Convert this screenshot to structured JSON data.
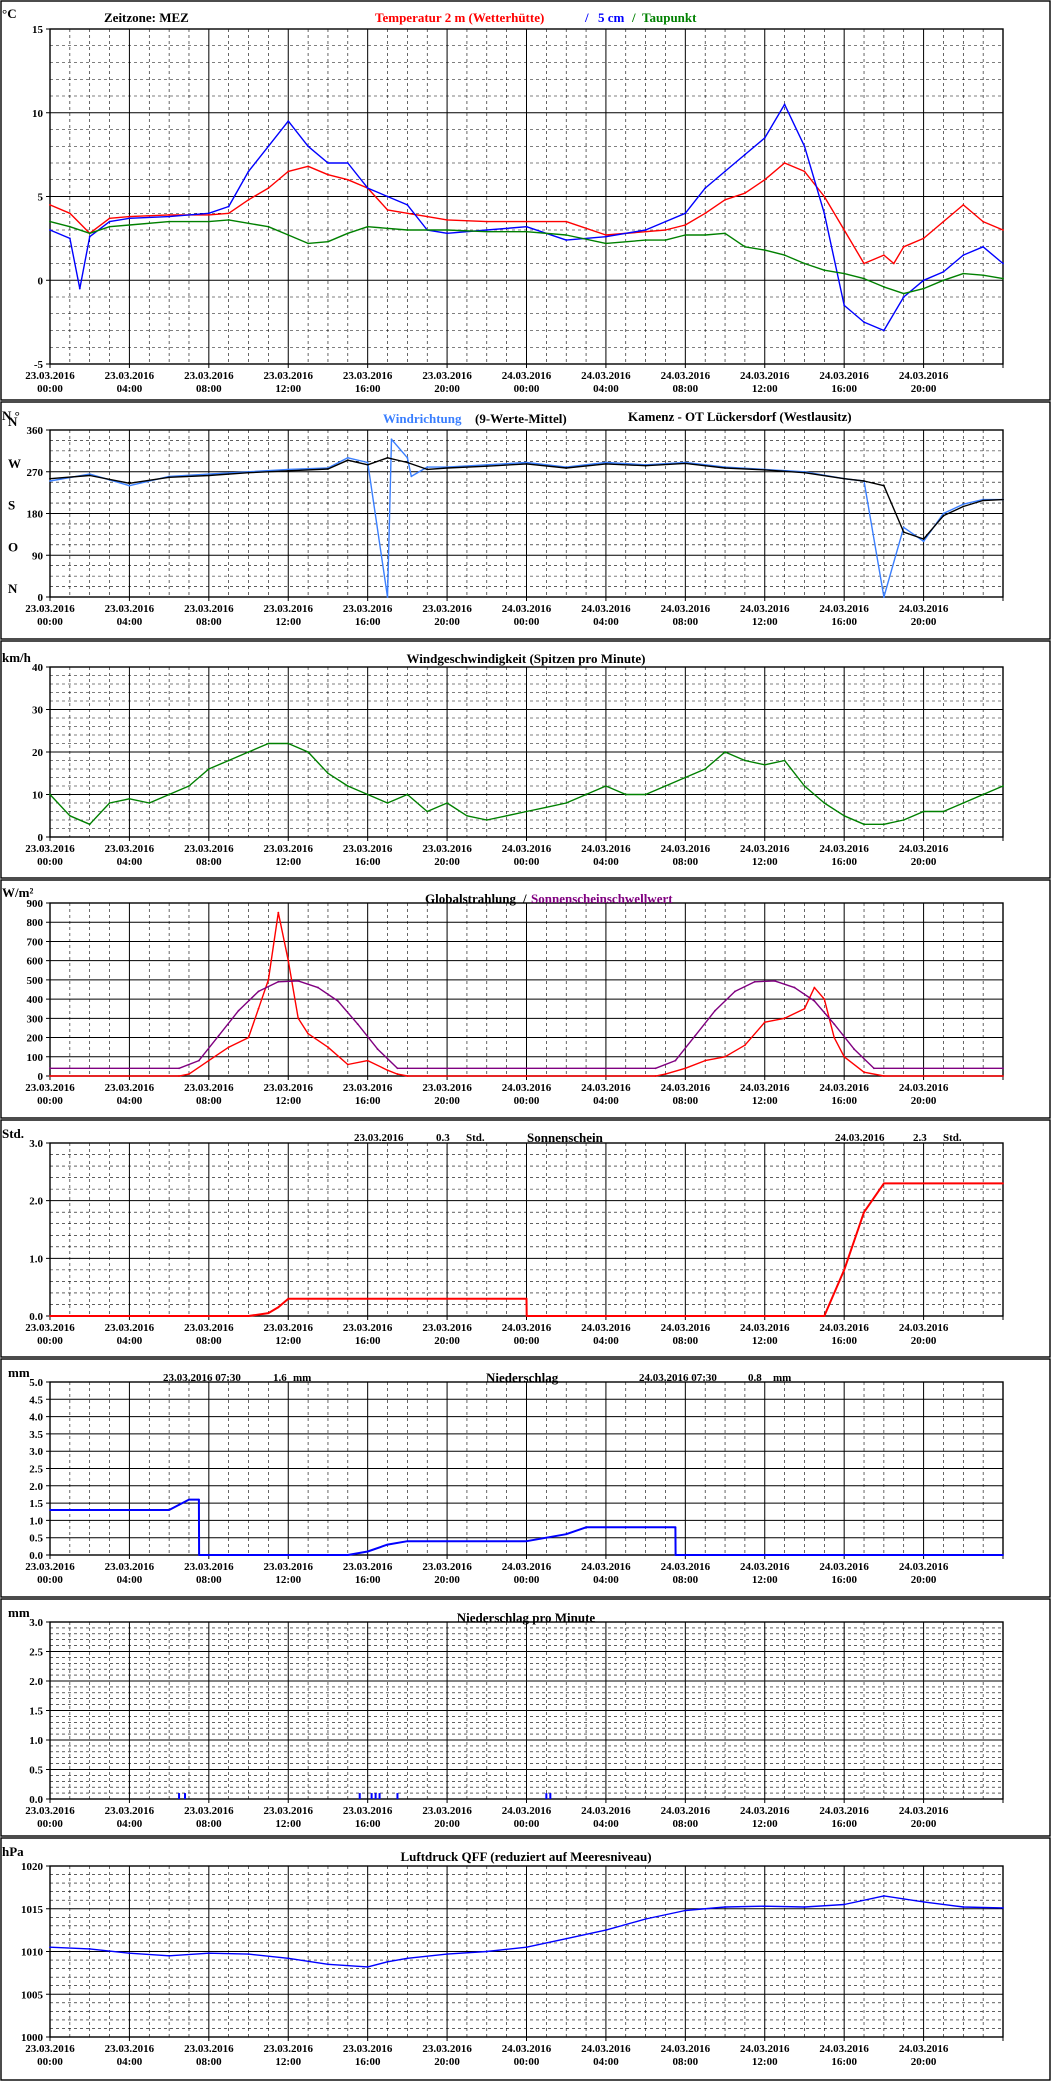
{
  "x_tick_labels": [
    [
      "23.03.2016",
      "00:00"
    ],
    [
      "23.03.2016",
      "04:00"
    ],
    [
      "23.03.2016",
      "08:00"
    ],
    [
      "23.03.2016",
      "12:00"
    ],
    [
      "23.03.2016",
      "16:00"
    ],
    [
      "23.03.2016",
      "20:00"
    ],
    [
      "24.03.2016",
      "00:00"
    ],
    [
      "24.03.2016",
      "04:00"
    ],
    [
      "24.03.2016",
      "08:00"
    ],
    [
      "24.03.2016",
      "12:00"
    ],
    [
      "24.03.2016",
      "16:00"
    ],
    [
      "24.03.2016",
      "20:00"
    ]
  ],
  "colors": {
    "red": "#ff0000",
    "blue": "#0000ff",
    "green": "#008000",
    "purple": "#800080",
    "lightblue": "#3a7fff",
    "black": "#000000"
  },
  "chart_data": [
    {
      "type": "line",
      "unit": "°C",
      "titles": {
        "zone": "Zeitzone: MEZ",
        "series_a": "Temperatur 2 m (Wetterhütte)",
        "sep": "/",
        "series_b": "5 cm",
        "sep2": "/",
        "series_c": "Taupunkt"
      },
      "ylim": [
        -5,
        15
      ],
      "y_ticks": [
        "-5",
        "0",
        "5",
        "10",
        "15"
      ],
      "series": [
        {
          "name": "Temperatur 2 m (Wetterhütte)",
          "color": "#ff0000",
          "x_hours": [
            0,
            1,
            2,
            3,
            4,
            6,
            8,
            9,
            10,
            11,
            12,
            13,
            14,
            15,
            16,
            17,
            18,
            19,
            20,
            22,
            24,
            26,
            28,
            30,
            31,
            32,
            33,
            34,
            35,
            36,
            37,
            38,
            39,
            40,
            41,
            42,
            42.5,
            43,
            44,
            45,
            46,
            47,
            48
          ],
          "values": [
            4.5,
            4.0,
            2.8,
            3.7,
            3.8,
            3.9,
            3.9,
            4.0,
            4.8,
            5.5,
            6.5,
            6.8,
            6.3,
            6.0,
            5.5,
            4.2,
            4.0,
            3.8,
            3.6,
            3.5,
            3.5,
            3.5,
            2.7,
            2.9,
            3.0,
            3.3,
            4.0,
            4.8,
            5.2,
            6.0,
            7.0,
            6.5,
            5.0,
            3.0,
            1.0,
            1.5,
            1.0,
            2.0,
            2.5,
            3.5,
            4.5,
            3.5,
            3.0
          ]
        },
        {
          "name": "5 cm",
          "color": "#0000ff",
          "x_hours": [
            0,
            1,
            1.5,
            2,
            3,
            4,
            6,
            8,
            9,
            10,
            11,
            12,
            13,
            14,
            15,
            16,
            17,
            18,
            19,
            20,
            22,
            24,
            26,
            28,
            30,
            31,
            32,
            33,
            34,
            35,
            36,
            37,
            38,
            39,
            40,
            41,
            42,
            43,
            44,
            45,
            46,
            47,
            48
          ],
          "values": [
            3.0,
            2.5,
            -0.5,
            2.6,
            3.5,
            3.7,
            3.8,
            4.0,
            4.4,
            6.5,
            8.0,
            9.5,
            8.0,
            7.0,
            7.0,
            5.5,
            5.0,
            4.5,
            3.0,
            2.8,
            3.0,
            3.2,
            2.4,
            2.6,
            3.0,
            3.5,
            4.0,
            5.5,
            6.5,
            7.5,
            8.5,
            10.5,
            8.0,
            4.0,
            -1.5,
            -2.5,
            -3.0,
            -1.0,
            0.0,
            0.5,
            1.5,
            2.0,
            1.0
          ]
        },
        {
          "name": "Taupunkt",
          "color": "#008000",
          "x_hours": [
            0,
            1,
            2,
            3,
            4,
            6,
            8,
            9,
            10,
            11,
            12,
            13,
            14,
            15,
            16,
            18,
            20,
            22,
            24,
            26,
            28,
            30,
            31,
            32,
            33,
            34,
            35,
            36,
            37,
            38,
            39,
            40,
            41,
            42,
            43,
            44,
            45,
            46,
            47,
            48
          ],
          "values": [
            3.5,
            3.2,
            2.8,
            3.2,
            3.3,
            3.5,
            3.5,
            3.6,
            3.4,
            3.2,
            2.7,
            2.2,
            2.3,
            2.8,
            3.2,
            3.0,
            3.0,
            2.9,
            2.9,
            2.7,
            2.2,
            2.4,
            2.4,
            2.7,
            2.7,
            2.8,
            2.0,
            1.8,
            1.5,
            1.0,
            0.6,
            0.4,
            0.1,
            -0.4,
            -0.8,
            -0.5,
            0.0,
            0.4,
            0.3,
            0.1
          ]
        }
      ]
    },
    {
      "type": "line",
      "unit": "N °",
      "titles": {
        "series": "Windrichtung",
        "paren": "(9-Werte-Mittel)",
        "station": "Kamenz - OT Lückersdorf (Westlausitz)"
      },
      "ylim": [
        0,
        360
      ],
      "y_ticks": [
        "0",
        "90",
        "180",
        "270",
        "360"
      ],
      "y_letters": [
        "N",
        "O",
        "S",
        "W",
        "N"
      ],
      "series": [
        {
          "name": "Windrichtung",
          "color": "#3a7fff",
          "x_hours": [
            0,
            2,
            4,
            6,
            8,
            10,
            12,
            14,
            15,
            16,
            17,
            17.2,
            18,
            18.2,
            19,
            20,
            22,
            24,
            26,
            28,
            30,
            32,
            34,
            36,
            38,
            40,
            41,
            42,
            43,
            44,
            45,
            46,
            47,
            48
          ],
          "values": [
            250,
            265,
            240,
            260,
            265,
            270,
            275,
            278,
            300,
            290,
            0,
            340,
            300,
            260,
            280,
            280,
            285,
            290,
            280,
            290,
            285,
            290,
            280,
            275,
            270,
            255,
            250,
            0,
            150,
            120,
            180,
            200,
            210,
            210
          ]
        },
        {
          "name": "9-Werte-Mittel",
          "color": "#000000",
          "x_hours": [
            0,
            2,
            4,
            6,
            8,
            10,
            12,
            14,
            15,
            16,
            17,
            18,
            19,
            20,
            22,
            24,
            26,
            28,
            30,
            32,
            34,
            36,
            38,
            40,
            41,
            42,
            43,
            44,
            45,
            46,
            47,
            48
          ],
          "values": [
            255,
            262,
            245,
            258,
            262,
            268,
            272,
            276,
            295,
            285,
            300,
            290,
            275,
            278,
            282,
            287,
            278,
            287,
            283,
            288,
            278,
            274,
            268,
            255,
            250,
            240,
            140,
            125,
            175,
            195,
            208,
            210
          ]
        }
      ]
    },
    {
      "type": "line",
      "unit": "km/h",
      "title": "Windgeschwindigkeit (Spitzen pro Minute)",
      "ylim": [
        0,
        40
      ],
      "y_ticks": [
        "0",
        "10",
        "20",
        "30",
        "40"
      ],
      "series": [
        {
          "name": "Windgeschwindigkeit",
          "color": "#008000",
          "x_hours": [
            0,
            1,
            2,
            3,
            4,
            5,
            6,
            7,
            8,
            9,
            10,
            11,
            12,
            13,
            14,
            15,
            16,
            17,
            18,
            19,
            20,
            21,
            22,
            23,
            24,
            25,
            26,
            27,
            28,
            29,
            30,
            31,
            32,
            33,
            34,
            35,
            36,
            37,
            38,
            39,
            40,
            41,
            42,
            43,
            44,
            45,
            46,
            47,
            48
          ],
          "values": [
            10,
            5,
            3,
            8,
            9,
            8,
            10,
            12,
            16,
            18,
            20,
            22,
            22,
            20,
            15,
            12,
            10,
            8,
            10,
            6,
            8,
            5,
            4,
            5,
            6,
            7,
            8,
            10,
            12,
            10,
            10,
            12,
            14,
            16,
            20,
            18,
            17,
            18,
            12,
            8,
            5,
            3,
            3,
            4,
            6,
            6,
            8,
            10,
            12
          ]
        }
      ]
    },
    {
      "type": "line",
      "unit": "W/m²",
      "titles": {
        "series_a": "Globalstrahlung",
        "sep": "/",
        "series_b": "Sonnenscheinschwellwert"
      },
      "ylim": [
        0,
        900
      ],
      "y_ticks": [
        "0",
        "100",
        "200",
        "300",
        "400",
        "500",
        "600",
        "700",
        "800",
        "900"
      ],
      "series": [
        {
          "name": "Globalstrahlung",
          "color": "#ff0000",
          "x_hours": [
            0,
            6.5,
            7,
            8,
            9,
            10,
            10.5,
            11,
            11.5,
            12,
            12.5,
            13,
            14,
            15,
            16,
            17,
            17.5,
            18,
            24,
            30.5,
            31,
            32,
            33,
            34,
            35,
            36,
            37,
            38,
            38.5,
            39,
            39.5,
            40,
            41,
            42,
            48
          ],
          "values": [
            0,
            0,
            10,
            80,
            150,
            200,
            350,
            500,
            850,
            600,
            300,
            220,
            150,
            60,
            80,
            30,
            10,
            0,
            0,
            0,
            10,
            40,
            80,
            100,
            160,
            280,
            300,
            350,
            460,
            400,
            200,
            100,
            20,
            0,
            0
          ]
        },
        {
          "name": "Sonnenscheinschwellwert",
          "color": "#800080",
          "x_hours": [
            0,
            6.5,
            7.5,
            8.5,
            9.5,
            10.5,
            11.5,
            12.5,
            13.5,
            14.5,
            15.5,
            16.5,
            17.5,
            24,
            30.5,
            31.5,
            32.5,
            33.5,
            34.5,
            35.5,
            36.5,
            37.5,
            38.5,
            39.5,
            40.5,
            41.5,
            48
          ],
          "values": [
            40,
            40,
            80,
            210,
            340,
            440,
            490,
            495,
            460,
            390,
            270,
            140,
            40,
            40,
            40,
            80,
            210,
            340,
            440,
            490,
            495,
            460,
            390,
            270,
            140,
            40,
            40
          ]
        }
      ]
    },
    {
      "type": "line",
      "unit": "Std.",
      "title": "Sonnenschein",
      "annotations": [
        {
          "date": "23.03.2016",
          "value": "0.3",
          "unit": "Std."
        },
        {
          "date": "24.03.2016",
          "value": "2.3",
          "unit": "Std."
        }
      ],
      "ylim": [
        0,
        3
      ],
      "y_ticks": [
        "0.0",
        "1.0",
        "2.0",
        "3.0"
      ],
      "series": [
        {
          "name": "Sonnenschein",
          "color": "#ff0000",
          "x_hours": [
            0,
            10,
            11,
            11.5,
            12,
            24,
            24.01,
            39,
            40,
            41,
            42,
            48
          ],
          "values": [
            0,
            0,
            0.05,
            0.15,
            0.3,
            0.3,
            0,
            0,
            0.8,
            1.8,
            2.3,
            2.3
          ]
        }
      ]
    },
    {
      "type": "line",
      "unit": "mm",
      "title": "Niederschlag",
      "annotations": [
        {
          "date": "23.03.2016 07:30",
          "value": "1.6",
          "unit": "mm"
        },
        {
          "date": "24.03.2016 07:30",
          "value": "0.8",
          "unit": "mm"
        }
      ],
      "ylim": [
        0,
        5
      ],
      "y_ticks": [
        "0.0",
        "0.5",
        "1.0",
        "1.5",
        "2.0",
        "2.5",
        "3.0",
        "3.5",
        "4.0",
        "4.5",
        "5.0"
      ],
      "series": [
        {
          "name": "Niederschlag",
          "color": "#0000ff",
          "x_hours": [
            0,
            6,
            6.5,
            7,
            7.5,
            7.51,
            15,
            16,
            17,
            18,
            24,
            26,
            27,
            31.5,
            31.51,
            48
          ],
          "values": [
            1.3,
            1.3,
            1.45,
            1.6,
            1.6,
            0,
            0,
            0.1,
            0.3,
            0.4,
            0.4,
            0.6,
            0.8,
            0.8,
            0,
            0
          ]
        }
      ]
    },
    {
      "type": "bar",
      "unit": "mm",
      "title": "Niederschlag pro Minute",
      "ylim": [
        0,
        3
      ],
      "y_ticks": [
        "0.0",
        "0.5",
        "1.0",
        "1.5",
        "2.0",
        "2.5",
        "3.0"
      ],
      "series": [
        {
          "name": "Niederschlag pro Minute",
          "color": "#0000ff",
          "x_hours": [
            6.5,
            6.8,
            15.6,
            16.2,
            16.4,
            16.6,
            17.5,
            25.0,
            25.2
          ],
          "values": [
            0.1,
            0.1,
            0.1,
            0.1,
            0.1,
            0.1,
            0.1,
            0.1,
            0.1
          ]
        }
      ]
    },
    {
      "type": "line",
      "unit": "hPa",
      "title": "Luftdruck QFF (reduziert auf Meeresniveau)",
      "ylim": [
        1000,
        1020
      ],
      "y_ticks": [
        "1000",
        "1005",
        "1010",
        "1015",
        "1020"
      ],
      "series": [
        {
          "name": "Luftdruck QFF",
          "color": "#0000ff",
          "x_hours": [
            0,
            2,
            4,
            6,
            8,
            10,
            12,
            14,
            16,
            17,
            18,
            20,
            22,
            24,
            26,
            28,
            30,
            32,
            34,
            36,
            38,
            40,
            42,
            44,
            46,
            48
          ],
          "values": [
            1010.5,
            1010.3,
            1009.8,
            1009.5,
            1009.8,
            1009.7,
            1009.2,
            1008.5,
            1008.2,
            1008.8,
            1009.2,
            1009.7,
            1010.0,
            1010.5,
            1011.5,
            1012.5,
            1013.8,
            1014.8,
            1015.2,
            1015.3,
            1015.2,
            1015.5,
            1016.5,
            1015.8,
            1015.2,
            1015.1
          ]
        }
      ]
    }
  ]
}
